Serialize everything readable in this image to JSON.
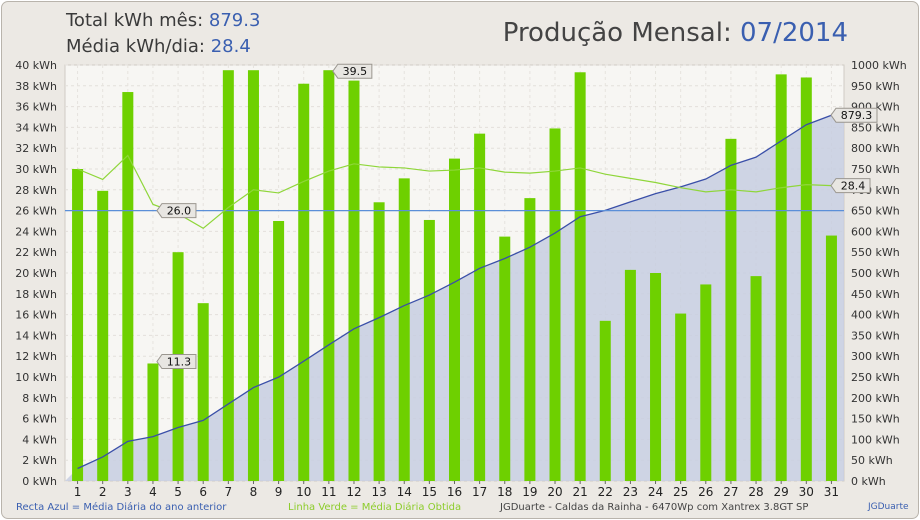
{
  "chart_data": {
    "type": "bar",
    "title": "Produção Mensal:",
    "period": "07/2014",
    "summary": {
      "total_label": "Total kWh mês:",
      "total_value": "879.3",
      "avg_label": "Média kWh/dia:",
      "avg_value": "28.4"
    },
    "categories": [
      "1",
      "2",
      "3",
      "4",
      "5",
      "6",
      "7",
      "8",
      "9",
      "10",
      "11",
      "12",
      "13",
      "14",
      "15",
      "16",
      "17",
      "18",
      "19",
      "20",
      "21",
      "22",
      "23",
      "24",
      "25",
      "26",
      "27",
      "28",
      "29",
      "30",
      "31"
    ],
    "series": [
      {
        "type": "bar",
        "axis": "left",
        "color": "#6ed000",
        "values": [
          30.0,
          27.9,
          37.4,
          11.3,
          22.0,
          17.1,
          39.5,
          39.5,
          25.0,
          38.2,
          39.5,
          38.5,
          26.8,
          29.1,
          25.1,
          31.0,
          33.4,
          23.5,
          27.2,
          33.9,
          39.3,
          15.4,
          20.3,
          20.0,
          16.1,
          18.9,
          32.9,
          19.7,
          39.1,
          38.8,
          23.6
        ]
      },
      {
        "type": "line",
        "axis": "left",
        "color": "#8fd63a",
        "values": [
          30.0,
          29.0,
          31.3,
          26.6,
          25.7,
          24.3,
          26.3,
          28.0,
          27.7,
          28.8,
          29.8,
          30.5,
          30.2,
          30.1,
          29.8,
          29.9,
          30.1,
          29.7,
          29.6,
          29.8,
          30.1,
          29.5,
          29.1,
          28.7,
          28.2,
          27.8,
          28.0,
          27.8,
          28.2,
          28.5,
          28.4
        ]
      },
      {
        "type": "area",
        "axis": "right",
        "color": "#3a4fa8",
        "fill": "#c7cee0",
        "values": [
          30.0,
          57.9,
          95.3,
          106.6,
          128.6,
          145.7,
          185.2,
          224.7,
          249.7,
          287.9,
          327.4,
          365.9,
          392.7,
          421.8,
          446.9,
          477.9,
          511.3,
          534.8,
          562.0,
          595.9,
          635.2,
          650.6,
          670.9,
          690.9,
          707.0,
          725.9,
          758.8,
          778.5,
          817.6,
          856.4,
          879.3
        ]
      },
      {
        "type": "hline",
        "axis": "left",
        "color": "#5b8fd8",
        "value": 26.0
      }
    ],
    "left_axis": {
      "min": 0,
      "max": 40,
      "step": 2,
      "unit": "kWh"
    },
    "right_axis": {
      "min": 0,
      "max": 1000,
      "step": 50,
      "unit": "kWh"
    },
    "annotations": [
      "39.5",
      "11.3",
      "26.0",
      "879.3",
      "28.4"
    ],
    "grid": true,
    "colors": {
      "bar": "#6ed000",
      "green_line": "#8fd63a",
      "blue_line": "#3a4fa8",
      "area": "#c7cee0",
      "ref_line": "#5b8fd8",
      "plot_bg": "#f7f6f3"
    },
    "footer": {
      "blue_legend": "Recta Azul = Média Diária do ano anterior",
      "green_legend": "Linha Verde = Média Diária Obtida",
      "info": "JGDuarte  -  Caldas da Rainha  -  6470Wp com Xantrex 3.8GT SP",
      "credit": "JGDuarte"
    }
  }
}
